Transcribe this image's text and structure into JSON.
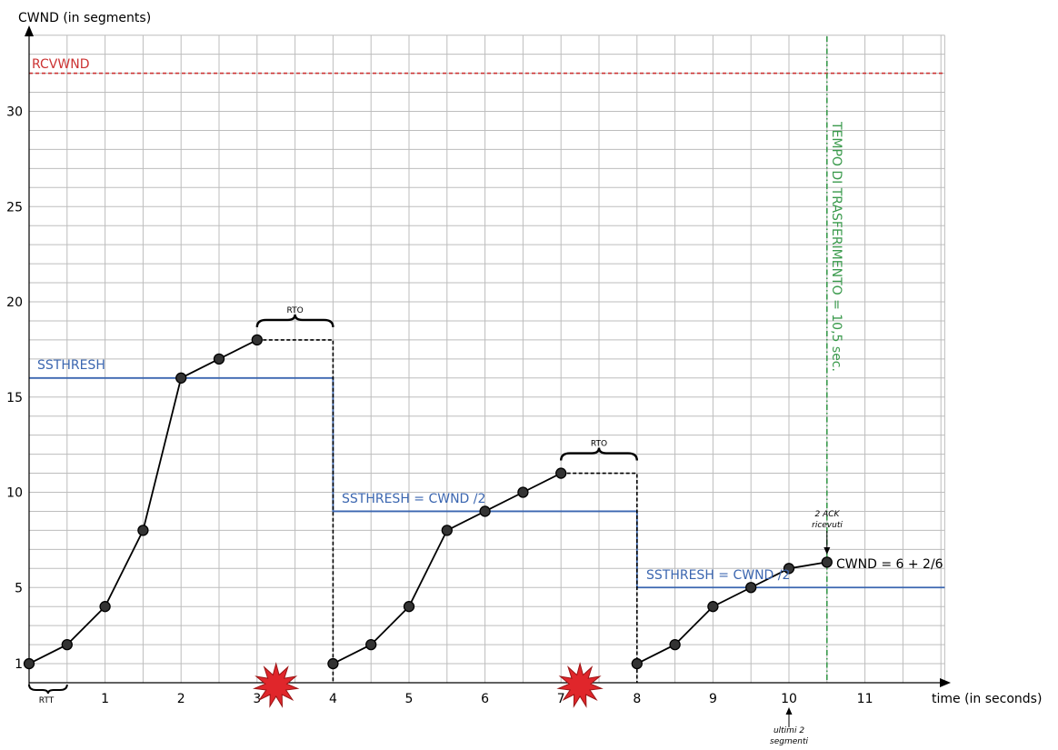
{
  "chart_data": {
    "type": "line",
    "ylabel": "CWND (in segments)",
    "xlabel": "time (in seconds)",
    "xlim": [
      0,
      12.25
    ],
    "ylim": [
      0,
      34
    ],
    "grid": true,
    "x_ticks": [
      1,
      2,
      3,
      4,
      5,
      6,
      7,
      8,
      9,
      10,
      11
    ],
    "y_ticks": [
      1,
      5,
      10,
      15,
      20,
      25,
      30
    ],
    "colors": {
      "grid": "#bdbdbd",
      "axis": "#000000",
      "cwnd": "#000000",
      "point": "#333333",
      "ssthresh": "#3b66b0",
      "rcvwnd": "#cc3333",
      "transfer": "#3a9a4c",
      "loss": "#e0262b"
    },
    "series": [
      {
        "name": "CWND",
        "segments": [
          [
            [
              0,
              1
            ],
            [
              0.5,
              2
            ],
            [
              1,
              4
            ],
            [
              1.5,
              8
            ],
            [
              2,
              16
            ],
            [
              2.5,
              17
            ],
            [
              3,
              18
            ]
          ],
          [
            [
              4,
              1
            ],
            [
              4.5,
              2
            ],
            [
              5,
              4
            ],
            [
              5.5,
              8
            ],
            [
              6,
              9
            ],
            [
              6.5,
              10
            ],
            [
              7,
              11
            ]
          ],
          [
            [
              8,
              1
            ],
            [
              8.5,
              2
            ],
            [
              9,
              4
            ],
            [
              9.5,
              5
            ],
            [
              10,
              6
            ],
            [
              10.5,
              6.33
            ]
          ]
        ]
      }
    ],
    "rto_intervals": [
      {
        "label": "RTO",
        "from": 3,
        "to": 4,
        "y": 18
      },
      {
        "label": "RTO",
        "from": 7,
        "to": 8,
        "y": 11
      }
    ],
    "ssthresh_steps": [
      {
        "from": 0,
        "to": 4,
        "y": 16
      },
      {
        "from": 4,
        "to": 8,
        "y": 9
      },
      {
        "from": 8,
        "to": 12.05,
        "y": 5
      }
    ],
    "rcvwnd": 32,
    "transfer_time_x": 10.5,
    "loss_events_x": [
      3.25,
      7.25
    ],
    "rtt_interval": [
      0,
      0.5
    ],
    "labels": {
      "rcvwnd": "RCVWND",
      "ssthresh_1": "SSTHRESH",
      "ssthresh_2": "SSTHRESH = CWND /2",
      "ssthresh_3": "SSTHRESH = CWND /2",
      "transfer_time": "TEMPO DI TRASFERIMENTO = 10,5 sec.",
      "rtt": "RTT",
      "ack_line1": "2 ACK",
      "ack_line2": "ricevuti",
      "cwnd_final": "CWND = 6 + 2/6",
      "last_segments_line1": "ultimi 2",
      "last_segments_line2": "segmenti"
    }
  }
}
